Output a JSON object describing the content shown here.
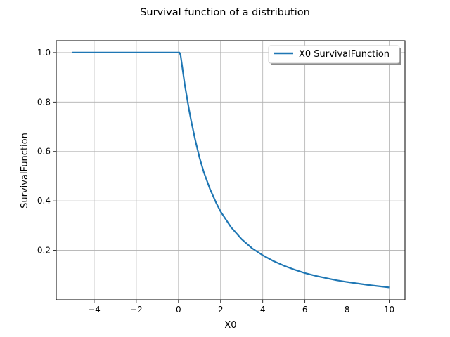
{
  "figure": {
    "suptitle": "Survival function of a distribution"
  },
  "chart_data": {
    "type": "line",
    "title": "Survival function of a distribution",
    "xlabel": "X0",
    "ylabel": "SurvivalFunction",
    "xlim": [
      -5.8,
      10.75
    ],
    "ylim": [
      0.0,
      1.048
    ],
    "xticks": [
      -4,
      -2,
      0,
      2,
      4,
      6,
      8,
      10
    ],
    "xtick_labels": [
      "−4",
      "−2",
      "0",
      "2",
      "4",
      "6",
      "8",
      "10"
    ],
    "yticks": [
      0.2,
      0.4,
      0.6,
      0.8,
      1.0
    ],
    "ytick_labels": [
      "0.2",
      "0.4",
      "0.6",
      "0.8",
      "1.0"
    ],
    "grid": true,
    "legend_position": "top-right",
    "series": [
      {
        "name": "X0 SurvivalFunction",
        "color": "#1f77b4",
        "x": [
          -5.05,
          -3,
          -1,
          0,
          0.05,
          0.1,
          0.2,
          0.3,
          0.4,
          0.5,
          0.6,
          0.8,
          1.0,
          1.2,
          1.5,
          1.8,
          2.0,
          2.5,
          3.0,
          3.5,
          4.0,
          4.5,
          5.0,
          5.5,
          6.0,
          6.5,
          7.0,
          7.5,
          8.0,
          8.5,
          9.0,
          9.5,
          10.0
        ],
        "y": [
          1.0,
          1.0,
          1.0,
          1.0,
          1.0,
          0.99,
          0.93,
          0.87,
          0.82,
          0.77,
          0.725,
          0.645,
          0.575,
          0.517,
          0.447,
          0.39,
          0.357,
          0.293,
          0.245,
          0.208,
          0.18,
          0.157,
          0.138,
          0.122,
          0.108,
          0.097,
          0.088,
          0.079,
          0.072,
          0.066,
          0.06,
          0.055,
          0.05
        ]
      }
    ]
  }
}
